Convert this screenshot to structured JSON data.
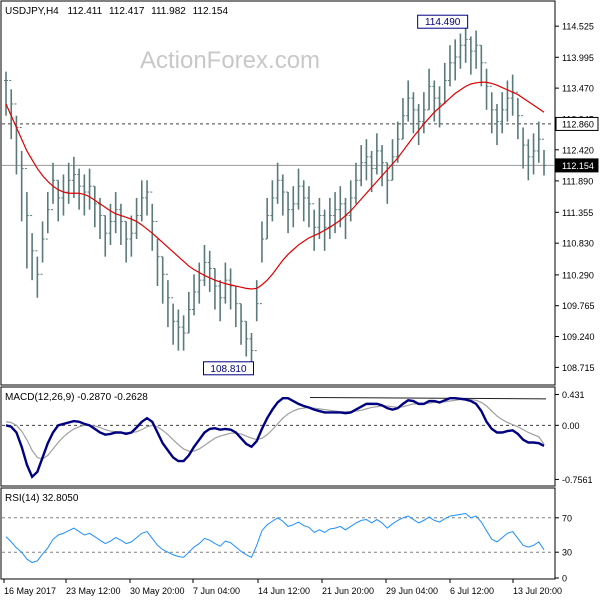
{
  "header": {
    "symbol": "USDJPY,H4",
    "open": "112.411",
    "high": "112.417",
    "low": "111.982",
    "close": "112.154"
  },
  "watermark": "ActionForex.com",
  "colors": {
    "price_bars": "#5a7a7a",
    "moving_average": "#e00000",
    "macd_line": "#000080",
    "signal_line": "#a0a0a0",
    "rsi_line": "#1e90ff",
    "reference_lines": "#404040"
  },
  "chart_data": [
    {
      "type": "bar",
      "title": "USDJPY,H4",
      "ylim": [
        108.5,
        114.8
      ],
      "y_ticks": [
        "114.525",
        "113.995",
        "113.470",
        "112.945",
        "112.420",
        "111.890",
        "111.355",
        "110.830",
        "110.290",
        "109.765",
        "109.240",
        "108.715"
      ],
      "x_tick_labels": [
        "16 May 2017",
        "23 May 12:00",
        "30 May 20:00",
        "7 Jun 04:00",
        "14 Jun 12:00",
        "21 Jun 20:00",
        "29 Jun 04:00",
        "6 Jul 12:00",
        "13 Jul 20:00"
      ],
      "series": [
        {
          "name": "",
          "closes": [
            113.6,
            113.2,
            112.8,
            112.1,
            111.3,
            110.7,
            110.3,
            110.9,
            111.4,
            111.9,
            111.6,
            111.7,
            111.9,
            112.0,
            111.8,
            111.7,
            111.8,
            111.5,
            111.3,
            111.0,
            111.2,
            111.4,
            111.2,
            110.9,
            111.0,
            111.3,
            111.6,
            111.7,
            111.2,
            110.6,
            110.3,
            109.9,
            109.5,
            109.4,
            109.3,
            109.7,
            110.0,
            110.2,
            110.5,
            110.4,
            110.1,
            109.9,
            110.2,
            110.1,
            109.8,
            109.5,
            109.2,
            109.0,
            109.8,
            110.9,
            111.3,
            111.6,
            111.9,
            111.7,
            111.4,
            111.5,
            111.8,
            111.6,
            111.5,
            111.1,
            111.3,
            111.1,
            111.3,
            111.4,
            111.5,
            111.3,
            111.6,
            111.9,
            112.2,
            112.3,
            112.1,
            112.4,
            112.2,
            111.9,
            112.3,
            112.6,
            113.0,
            113.3,
            113.1,
            112.9,
            113.1,
            113.5,
            113.3,
            113.2,
            113.6,
            113.9,
            114.0,
            114.2,
            114.3,
            114.1,
            114.2,
            113.9,
            113.5,
            113.1,
            112.9,
            113.1,
            113.3,
            113.4,
            113.0,
            112.5,
            112.3,
            112.4,
            112.6,
            112.154
          ],
          "highs": [
            113.75,
            113.45,
            113.0,
            112.4,
            111.7,
            111.0,
            110.6,
            111.2,
            111.7,
            112.2,
            111.9,
            112.0,
            112.2,
            112.3,
            112.1,
            112.0,
            112.1,
            111.8,
            111.6,
            111.3,
            111.5,
            111.7,
            111.5,
            111.2,
            111.3,
            111.6,
            111.9,
            111.9,
            111.5,
            110.9,
            110.6,
            110.2,
            109.8,
            109.7,
            109.6,
            110.0,
            110.3,
            110.5,
            110.8,
            110.7,
            110.4,
            110.2,
            110.5,
            110.4,
            110.1,
            109.8,
            109.5,
            109.3,
            110.2,
            111.2,
            111.6,
            111.9,
            112.2,
            112.0,
            111.7,
            111.8,
            112.1,
            111.9,
            111.8,
            111.4,
            111.6,
            111.4,
            111.6,
            111.7,
            111.8,
            111.6,
            111.9,
            112.2,
            112.5,
            112.6,
            112.4,
            112.7,
            112.5,
            112.2,
            112.6,
            112.9,
            113.3,
            113.6,
            113.4,
            113.2,
            113.4,
            113.8,
            113.6,
            113.5,
            113.9,
            114.2,
            114.3,
            114.4,
            114.49,
            114.35,
            114.45,
            114.2,
            113.8,
            113.4,
            113.2,
            113.4,
            113.6,
            113.7,
            113.3,
            112.8,
            112.6,
            112.7,
            112.9,
            112.417
          ],
          "lows": [
            113.0,
            112.6,
            112.0,
            111.2,
            110.4,
            110.2,
            109.9,
            110.5,
            111.0,
            111.5,
            111.2,
            111.3,
            111.5,
            111.6,
            111.4,
            111.3,
            111.4,
            111.1,
            110.9,
            110.6,
            110.8,
            111.0,
            110.8,
            110.5,
            110.6,
            110.9,
            111.2,
            111.3,
            110.7,
            110.1,
            109.8,
            109.4,
            109.1,
            109.0,
            109.0,
            109.3,
            109.6,
            109.8,
            110.1,
            110.0,
            109.7,
            109.5,
            109.8,
            109.7,
            109.4,
            109.1,
            108.9,
            108.81,
            109.5,
            110.5,
            110.9,
            111.2,
            111.5,
            111.3,
            111.0,
            111.1,
            111.4,
            111.2,
            111.1,
            110.7,
            110.9,
            110.7,
            110.9,
            111.0,
            111.1,
            110.9,
            111.2,
            111.5,
            111.8,
            111.9,
            111.7,
            112.0,
            111.8,
            111.5,
            111.9,
            112.2,
            112.6,
            112.9,
            112.7,
            112.5,
            112.7,
            113.1,
            112.9,
            112.8,
            113.2,
            113.5,
            113.6,
            113.8,
            113.9,
            113.7,
            113.8,
            113.5,
            113.1,
            112.7,
            112.5,
            112.7,
            112.9,
            113.0,
            112.6,
            112.1,
            111.9,
            112.0,
            112.2,
            111.982
          ]
        },
        {
          "name": "",
          "values": [
            113.2,
            113.0,
            112.8,
            112.6,
            112.4,
            112.25,
            112.1,
            111.98,
            111.88,
            111.8,
            111.74,
            111.7,
            111.68,
            111.68,
            111.68,
            111.66,
            111.62,
            111.56,
            111.5,
            111.44,
            111.38,
            111.33,
            111.3,
            111.27,
            111.24,
            111.2,
            111.14,
            111.07,
            111.0,
            110.92,
            110.84,
            110.76,
            110.68,
            110.6,
            110.52,
            110.44,
            110.38,
            110.33,
            110.28,
            110.24,
            110.2,
            110.17,
            110.14,
            110.12,
            110.1,
            110.08,
            110.06,
            110.05,
            110.06,
            110.12,
            110.2,
            110.3,
            110.42,
            110.54,
            110.64,
            110.72,
            110.8,
            110.86,
            110.92,
            110.96,
            111.0,
            111.05,
            111.1,
            111.16,
            111.22,
            111.3,
            111.38,
            111.48,
            111.58,
            111.68,
            111.78,
            111.88,
            111.98,
            112.08,
            112.18,
            112.28,
            112.4,
            112.52,
            112.64,
            112.75,
            112.86,
            112.96,
            113.06,
            113.14,
            113.22,
            113.3,
            113.38,
            113.44,
            113.5,
            113.54,
            113.56,
            113.57,
            113.57,
            113.55,
            113.52,
            113.48,
            113.44,
            113.4,
            113.36,
            113.3,
            113.24,
            113.18,
            113.12,
            113.06
          ]
        }
      ],
      "annotations": [
        {
          "text": "114.490",
          "value": 114.49
        },
        {
          "text": "108.810",
          "value": 108.81
        },
        {
          "text": "112.860",
          "value": 112.86
        },
        {
          "text": "112.154",
          "value": 112.154
        }
      ]
    },
    {
      "type": "line",
      "title": "MACD(12,26,9) -0.2870 -0.2628",
      "ylim": [
        -0.82,
        0.48
      ],
      "y_ticks": [
        "0.431",
        "0.00",
        "-0.7561"
      ],
      "series": [
        {
          "name": "",
          "values": [
            0.0,
            -0.02,
            -0.1,
            -0.3,
            -0.55,
            -0.72,
            -0.65,
            -0.45,
            -0.25,
            -0.1,
            0.0,
            0.02,
            0.04,
            0.06,
            0.05,
            0.02,
            0.0,
            -0.05,
            -0.1,
            -0.13,
            -0.12,
            -0.1,
            -0.1,
            -0.12,
            -0.1,
            -0.03,
            0.05,
            0.1,
            0.05,
            -0.1,
            -0.25,
            -0.35,
            -0.45,
            -0.5,
            -0.5,
            -0.42,
            -0.3,
            -0.2,
            -0.1,
            -0.05,
            -0.04,
            -0.06,
            -0.05,
            -0.06,
            -0.1,
            -0.18,
            -0.26,
            -0.3,
            -0.22,
            -0.05,
            0.1,
            0.22,
            0.32,
            0.38,
            0.38,
            0.34,
            0.3,
            0.27,
            0.25,
            0.22,
            0.2,
            0.18,
            0.18,
            0.18,
            0.18,
            0.17,
            0.18,
            0.22,
            0.26,
            0.3,
            0.3,
            0.3,
            0.28,
            0.24,
            0.22,
            0.24,
            0.3,
            0.35,
            0.34,
            0.3,
            0.3,
            0.34,
            0.34,
            0.32,
            0.35,
            0.38,
            0.38,
            0.37,
            0.36,
            0.34,
            0.3,
            0.2,
            0.05,
            -0.05,
            -0.1,
            -0.1,
            -0.08,
            -0.07,
            -0.12,
            -0.2,
            -0.24,
            -0.24,
            -0.25,
            -0.287
          ]
        },
        {
          "name": "",
          "values": [
            0.05,
            0.04,
            0.0,
            -0.08,
            -0.2,
            -0.35,
            -0.45,
            -0.47,
            -0.42,
            -0.33,
            -0.24,
            -0.16,
            -0.1,
            -0.05,
            -0.02,
            0.0,
            0.0,
            -0.01,
            -0.03,
            -0.06,
            -0.08,
            -0.09,
            -0.1,
            -0.1,
            -0.1,
            -0.09,
            -0.06,
            -0.02,
            0.0,
            -0.02,
            -0.07,
            -0.13,
            -0.2,
            -0.27,
            -0.33,
            -0.36,
            -0.36,
            -0.33,
            -0.28,
            -0.23,
            -0.18,
            -0.15,
            -0.13,
            -0.11,
            -0.11,
            -0.12,
            -0.15,
            -0.18,
            -0.2,
            -0.18,
            -0.13,
            -0.06,
            0.02,
            0.1,
            0.16,
            0.2,
            0.23,
            0.24,
            0.25,
            0.24,
            0.23,
            0.22,
            0.21,
            0.2,
            0.19,
            0.19,
            0.19,
            0.2,
            0.21,
            0.23,
            0.25,
            0.26,
            0.27,
            0.27,
            0.26,
            0.25,
            0.26,
            0.28,
            0.3,
            0.3,
            0.3,
            0.31,
            0.32,
            0.32,
            0.33,
            0.34,
            0.35,
            0.36,
            0.36,
            0.36,
            0.35,
            0.32,
            0.27,
            0.2,
            0.13,
            0.08,
            0.04,
            0.01,
            -0.02,
            -0.06,
            -0.1,
            -0.13,
            -0.16,
            -0.2628
          ]
        }
      ]
    },
    {
      "type": "line",
      "title": "RSI(14) 32.8050",
      "ylim": [
        0,
        100
      ],
      "y_ticks": [
        "70",
        "30",
        "0"
      ],
      "series": [
        {
          "name": "",
          "values": [
            48,
            42,
            35,
            30,
            22,
            18,
            20,
            28,
            35,
            45,
            50,
            52,
            55,
            58,
            54,
            50,
            52,
            48,
            44,
            40,
            43,
            47,
            44,
            40,
            42,
            47,
            52,
            54,
            46,
            38,
            33,
            30,
            27,
            25,
            24,
            30,
            36,
            40,
            46,
            44,
            40,
            37,
            43,
            41,
            36,
            31,
            27,
            24,
            38,
            55,
            62,
            66,
            70,
            66,
            60,
            62,
            65,
            61,
            59,
            53,
            56,
            53,
            57,
            58,
            60,
            56,
            60,
            64,
            67,
            68,
            64,
            68,
            64,
            58,
            63,
            67,
            70,
            72,
            68,
            64,
            67,
            71,
            67,
            65,
            69,
            72,
            73,
            74,
            75,
            70,
            72,
            65,
            55,
            45,
            42,
            47,
            52,
            54,
            46,
            38,
            36,
            38,
            42,
            32.805
          ]
        }
      ],
      "reference_levels": [
        70,
        30
      ]
    }
  ]
}
